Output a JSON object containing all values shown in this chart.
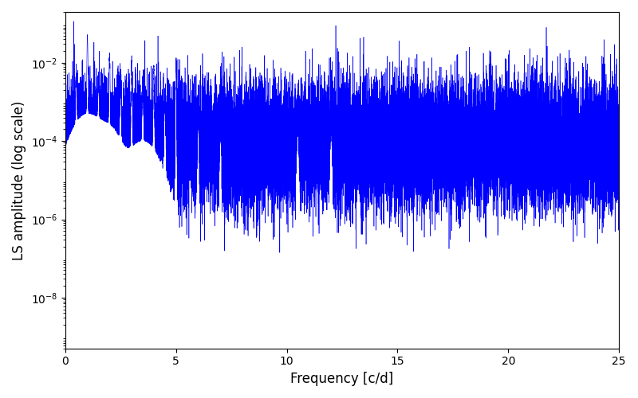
{
  "title": "",
  "xlabel": "Frequency [c/d]",
  "ylabel": "LS amplitude (log scale)",
  "xlim": [
    0,
    25
  ],
  "ylim_log": [
    5e-10,
    0.2
  ],
  "yticks": [
    1e-08,
    1e-06,
    0.0001,
    0.01
  ],
  "line_color": "#0000FF",
  "line_width": 0.4,
  "background_color": "#ffffff",
  "seed": 12345,
  "n_points": 25000,
  "freq_max": 25.0,
  "figsize": [
    8.0,
    5.0
  ],
  "dpi": 100,
  "noise_floor_low": 3e-05,
  "noise_floor_high": 0.0003,
  "noise_std_log": 1.8
}
